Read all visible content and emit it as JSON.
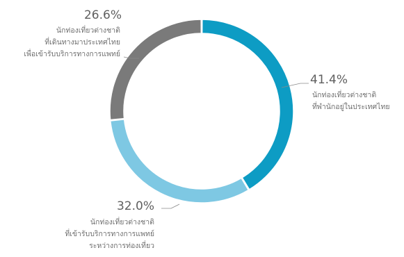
{
  "chart_data": {
    "type": "pie",
    "donut": true,
    "slices": [
      {
        "label": "นักท่องเที่ยวต่างชาติที่พำนักอยู่ในประเทศไทย",
        "value": 41.4,
        "value_label": "41.4%",
        "desc_lines": [
          "นักท่องเที่ยวต่างชาติ",
          "ที่พำนักอยู่ในประเทศไทย"
        ],
        "color": "#0d9cc4"
      },
      {
        "label": "นักท่องเที่ยวต่างชาติที่เข้ารับบริการทางการแพทย์ระหว่างการท่องเที่ยว",
        "value": 32.0,
        "value_label": "32.0%",
        "desc_lines": [
          "นักท่องเที่ยวต่างชาติ",
          "ที่เข้ารับบริการทางการแพทย์",
          "ระหว่างการท่องเที่ยว"
        ],
        "color": "#7ec8e3"
      },
      {
        "label": "นักท่องเที่ยวต่างชาติที่เดินทางมาประเทศไทยเพื่อเข้ารับบริการทางการแพทย์",
        "value": 26.6,
        "value_label": "26.6%",
        "desc_lines": [
          "นักท่องเที่ยวต่างชาติ",
          "ที่เดินทางมาประเทศไทย",
          "เพื่อเข้ารับบริการทางการแพทย์"
        ],
        "color": "#7a7a7a"
      }
    ]
  }
}
